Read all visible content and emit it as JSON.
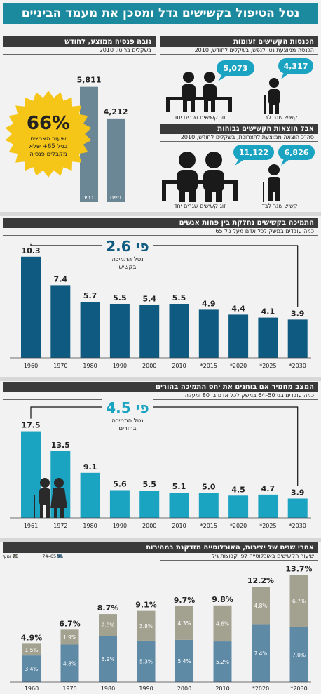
{
  "title": "נטל הטיפול בקשישים גדל ומסכן את מעמד הביניים",
  "pension": {
    "title": "גובה פנסיה ממוצע, לחודש",
    "subtitle": "בשקלים ברוטו, 2010",
    "chart_data": {
      "type": "bar",
      "title": "גובה פנסיה ממוצע, לחודש",
      "categories": [
        "גברים",
        "נשים"
      ],
      "values": [
        5811,
        4212
      ],
      "value_labels": [
        "5,811",
        "4,212"
      ],
      "ylim": [
        0,
        7000
      ],
      "color": "#6b8795"
    },
    "badge_value": "66%",
    "badge_text1": "שיעור האנשים",
    "badge_text2": "בגיל 65+ שלא",
    "badge_text3": "מקבלים פנסיה"
  },
  "income": {
    "title": "הכנסות הקשישים זעומות",
    "subtitle": "הכנסה ממוצעת נטו לנפש, בשקלים לחודש, 2010",
    "couple_value": "5,073",
    "single_value": "4,317",
    "couple_label": "זוג קשישים שגרים יחד",
    "single_label": "קשיש שגר לבד"
  },
  "expenses": {
    "title": "אבל הוצאות הקשישים גבוהות",
    "subtitle": "סה\"כ הוצאה ממוצעת לתצרוכת, בשקלים לחודש, 2010",
    "couple_value": "11,122",
    "single_value": "6,826",
    "couple_label": "זוג קשישים שגרים יחד",
    "single_label": "קשיש שגר לבד"
  },
  "support": {
    "title": "התמיכה בקשישים נחלקת בין פחות אנשים",
    "subtitle": "כמה עובדים במשק לכל אדם מעל גיל 65",
    "callout_value": "פי 2.6",
    "callout_text1": "נטל התמיכה",
    "callout_text2": "בקשיש",
    "chart_data": {
      "type": "bar",
      "title": "התמיכה בקשישים נחלקת בין פחות אנשים",
      "categories": [
        "1960",
        "1970",
        "1980",
        "1990",
        "2000",
        "2010",
        "*2015",
        "*2020",
        "*2025",
        "*2030"
      ],
      "values": [
        10.3,
        7.4,
        5.7,
        5.5,
        5.4,
        5.5,
        4.9,
        4.4,
        4.1,
        3.9
      ],
      "ylim": [
        0,
        11
      ],
      "color": "#0f5a80"
    }
  },
  "parents": {
    "title": "המצב מחמיר אם בוחנים את יחס התמיכה בהורים",
    "subtitle": "כמה עובדים בני 50–64 במשק לכל אדם בן 80 ומעלה",
    "callout_value": "פי 4.5",
    "callout_text1": "נטל התמיכה",
    "callout_text2": "בהורים",
    "chart_data": {
      "type": "bar",
      "title": "המצב מחמיר אם בוחנים את יחס התמיכה בהורים",
      "categories": [
        "1961",
        "1972",
        "1980",
        "1990",
        "2000",
        "2010",
        "*2015",
        "*2020",
        "*2025",
        "*2030"
      ],
      "values": [
        17.5,
        13.5,
        9.1,
        5.6,
        5.5,
        5.1,
        5.0,
        4.5,
        4.7,
        3.9
      ],
      "ylim": [
        0,
        19
      ],
      "color": "#1ba3c2"
    }
  },
  "aging": {
    "title": "אחרי שנים של יציבות, האוכלוסייה מזדקנת במהירות",
    "subtitle": "שיעור הקשישים באוכלוסייה לפי קבוצות גיל",
    "legend_young": "גיל 65–74",
    "legend_old": "75 ומעלה",
    "chart_data": {
      "type": "bar",
      "stacked": true,
      "title": "אחרי שנים של יציבות, האוכלוסייה מזדקנת במהירות",
      "categories": [
        "1960",
        "1970",
        "1980",
        "1990",
        "2000",
        "2010",
        "*2020",
        "*2030"
      ],
      "series": [
        {
          "name": "גיל 65–74",
          "values": [
            3.4,
            4.8,
            5.9,
            5.3,
            5.4,
            5.2,
            7.4,
            7.0
          ],
          "color": "#5f8aa6"
        },
        {
          "name": "75 ומעלה",
          "values": [
            1.5,
            1.9,
            2.8,
            3.8,
            4.3,
            4.6,
            4.8,
            6.7
          ],
          "color": "#a3a291"
        }
      ],
      "totals": [
        "4.9%",
        "6.7%",
        "8.7%",
        "9.1%",
        "9.7%",
        "9.8%",
        "12.2%",
        "13.7%"
      ],
      "ylim": [
        0,
        14
      ]
    }
  }
}
